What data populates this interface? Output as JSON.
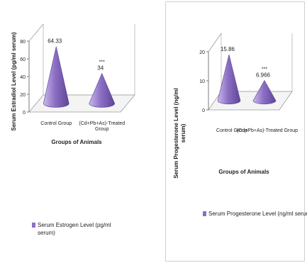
{
  "chart_data": [
    {
      "type": "bar",
      "subtype": "3d-cone",
      "categories": [
        "Control Group",
        "(Cd+Pb+As)-Treated Group"
      ],
      "series": [
        {
          "name": "Serum Estrogen Level (pg/ml serum)",
          "values": [
            64.33,
            34
          ]
        }
      ],
      "data_labels": [
        "64.33",
        "34"
      ],
      "significance_marks": [
        "",
        "***"
      ],
      "xlabel": "Groups of Animals",
      "ylabel": "Serum Estradiol Level (pg/ml serum)",
      "ylim": [
        0,
        80
      ],
      "yticks": [
        0,
        20,
        40,
        60,
        80
      ],
      "grid": false,
      "legend_position": "bottom",
      "colors": {
        "series": "#8c6fc4",
        "series_dark": "#5e4596",
        "series_light": "#c9b8ea"
      }
    },
    {
      "type": "bar",
      "subtype": "3d-cone",
      "categories": [
        "Control Group",
        "(Cd+Pb+As)-Treated Group"
      ],
      "series": [
        {
          "name": "Serum Progesterone Level (ng/ml serum)",
          "values": [
            15.86,
            6.966
          ]
        }
      ],
      "data_labels": [
        "15.86",
        "6.966"
      ],
      "significance_marks": [
        "",
        "***"
      ],
      "xlabel": "Groups of Animals",
      "ylabel": "Serum Progesterone Level (ng/ml serum)",
      "ylim": [
        0,
        20
      ],
      "yticks": [
        0,
        10,
        20
      ],
      "grid": false,
      "legend_position": "bottom",
      "colors": {
        "series": "#8c6fc4",
        "series_dark": "#5e4596",
        "series_light": "#c9b8ea"
      }
    }
  ]
}
